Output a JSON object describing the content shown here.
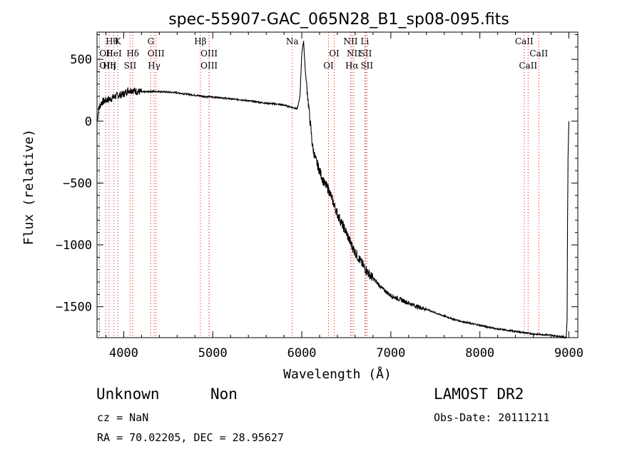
{
  "chart_data": {
    "type": "line",
    "title": "spec-55907-GAC_065N28_B1_sp08-095.fits",
    "xlabel": "Wavelength (Å)",
    "ylabel": "Flux (relative)",
    "xlim": [
      3700,
      9100
    ],
    "ylim": [
      -1750,
      720
    ],
    "xticks": [
      4000,
      5000,
      6000,
      7000,
      8000,
      9000
    ],
    "yticks": [
      -1500,
      -1000,
      -500,
      0,
      500
    ],
    "grid": false,
    "series": [
      {
        "x": [
          3700,
          3720,
          3750,
          3800,
          3850,
          3900,
          3950,
          4000,
          4050,
          4100,
          4150,
          4200,
          4300,
          4400,
          4500,
          4600,
          4700,
          4800,
          4900,
          5000,
          5100,
          5200,
          5300,
          5400,
          5500,
          5600,
          5700,
          5800,
          5900,
          5950,
          5980,
          6000,
          6020,
          6040,
          6060,
          6080,
          6100,
          6120,
          6150,
          6200,
          6250,
          6300,
          6350,
          6400,
          6450,
          6500,
          6550,
          6600,
          6650,
          6700,
          6750,
          6800,
          6900,
          7000,
          7100,
          7200,
          7300,
          7400,
          7500,
          7600,
          7700,
          7800,
          7900,
          8000,
          8100,
          8200,
          8300,
          8400,
          8500,
          8600,
          8700,
          8800,
          8900,
          8950,
          8970,
          8980,
          8985,
          8990,
          9000
        ],
        "y": [
          -10,
          100,
          150,
          170,
          180,
          200,
          210,
          220,
          250,
          250,
          240,
          235,
          240,
          240,
          235,
          230,
          220,
          210,
          200,
          195,
          190,
          180,
          175,
          165,
          155,
          145,
          140,
          130,
          110,
          100,
          200,
          550,
          650,
          400,
          250,
          100,
          -50,
          -200,
          -300,
          -400,
          -500,
          -550,
          -650,
          -750,
          -830,
          -900,
          -990,
          -1060,
          -1120,
          -1180,
          -1230,
          -1270,
          -1350,
          -1410,
          -1440,
          -1470,
          -1500,
          -1520,
          -1550,
          -1575,
          -1600,
          -1620,
          -1635,
          -1650,
          -1665,
          -1680,
          -1690,
          -1700,
          -1710,
          -1720,
          -1725,
          -1730,
          -1740,
          -1745,
          -1750,
          -1600,
          -800,
          -300,
          0
        ]
      }
    ],
    "lines": [
      {
        "label": "Hθ",
        "x": 3797,
        "row": 0,
        "align": "start"
      },
      {
        "label": "K",
        "x": 3934,
        "row": 0,
        "align": "middle"
      },
      {
        "label": "HeI",
        "x": 3889,
        "row": 1,
        "align": "middle"
      },
      {
        "label": "OII",
        "x": 3727,
        "row": 1,
        "align": "start"
      },
      {
        "label": "Hδ",
        "x": 4102,
        "row": 1,
        "align": "middle"
      },
      {
        "label": "OIII",
        "x": 3727,
        "row": 2,
        "align": "start"
      },
      {
        "label": "Hη",
        "x": 3835,
        "row": 2,
        "align": "middle"
      },
      {
        "label": "SII",
        "x": 4072,
        "row": 2,
        "align": "middle"
      },
      {
        "label": "G",
        "x": 4304,
        "row": 0,
        "align": "middle"
      },
      {
        "label": "OIII",
        "x": 4363,
        "row": 1,
        "align": "middle"
      },
      {
        "label": "Hγ",
        "x": 4341,
        "row": 2,
        "align": "middle"
      },
      {
        "label": "Hβ",
        "x": 4861,
        "row": 0,
        "align": "middle"
      },
      {
        "label": "OIII",
        "x": 4959,
        "row": 1,
        "align": "middle"
      },
      {
        "label": "OIII",
        "x": 4959,
        "row": 2,
        "align": "middle"
      },
      {
        "label": "Na",
        "x": 5893,
        "row": 0,
        "align": "middle"
      },
      {
        "label": "OI",
        "x": 6364,
        "row": 1,
        "align": "middle"
      },
      {
        "label": "OI",
        "x": 6300,
        "row": 2,
        "align": "middle"
      },
      {
        "label": "NII",
        "x": 6548,
        "row": 0,
        "align": "middle"
      },
      {
        "label": "Li",
        "x": 6708,
        "row": 0,
        "align": "middle"
      },
      {
        "label": "NII",
        "x": 6584,
        "row": 1,
        "align": "middle"
      },
      {
        "label": "SII",
        "x": 6717,
        "row": 1,
        "align": "middle"
      },
      {
        "label": "Hα",
        "x": 6563,
        "row": 2,
        "align": "middle"
      },
      {
        "label": "SII",
        "x": 6731,
        "row": 2,
        "align": "middle"
      },
      {
        "label": "CaII",
        "x": 8498,
        "row": 0,
        "align": "middle"
      },
      {
        "label": "CaII",
        "x": 8662,
        "row": 1,
        "align": "middle"
      },
      {
        "label": "CaII",
        "x": 8542,
        "row": 2,
        "align": "middle"
      }
    ]
  },
  "info": {
    "class_name": "Unknown",
    "subclass": "Non",
    "survey": "LAMOST DR2",
    "cz": "cz = NaN",
    "obs_date": "Obs-Date: 20111211",
    "coords": "RA =  70.02205, DEC =  28.95627"
  }
}
